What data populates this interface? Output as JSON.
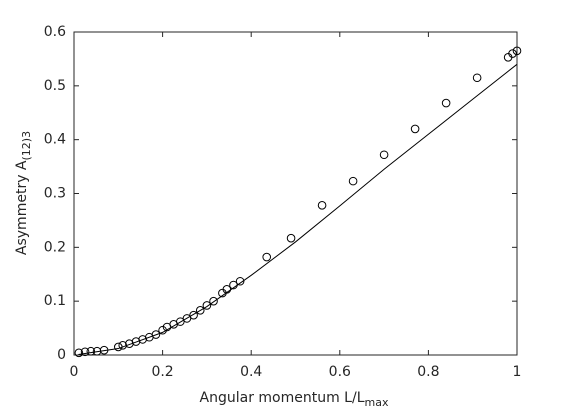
{
  "chart_data": {
    "type": "scatter",
    "xlabel": {
      "text": "Angular momentum L/L",
      "subscript": "max"
    },
    "ylabel": {
      "text": "Asymmetry A",
      "subscript": "(12)3"
    },
    "xlim": [
      0,
      1
    ],
    "xticks": [
      0,
      0.2,
      0.4,
      0.6,
      0.8,
      1
    ],
    "ylim": [
      0,
      0.6
    ],
    "yticks": [
      0,
      0.1,
      0.2,
      0.3,
      0.4,
      0.5,
      0.6
    ],
    "series": [
      {
        "style": "markers",
        "color": "#000000",
        "x": [
          0.011,
          0.025,
          0.038,
          0.052,
          0.068,
          0.1,
          0.11,
          0.125,
          0.14,
          0.155,
          0.17,
          0.185,
          0.2,
          0.21,
          0.225,
          0.24,
          0.255,
          0.27,
          0.285,
          0.3,
          0.315,
          0.335,
          0.345,
          0.36,
          0.375,
          0.435,
          0.49,
          0.56,
          0.63,
          0.7,
          0.77,
          0.84,
          0.91,
          0.98,
          0.99,
          1.0
        ],
        "values": [
          0.004,
          0.006,
          0.007,
          0.007,
          0.009,
          0.015,
          0.018,
          0.021,
          0.025,
          0.029,
          0.033,
          0.038,
          0.046,
          0.052,
          0.057,
          0.062,
          0.068,
          0.074,
          0.083,
          0.092,
          0.1,
          0.115,
          0.122,
          0.13,
          0.137,
          0.182,
          0.217,
          0.278,
          0.323,
          0.372,
          0.42,
          0.468,
          0.515,
          0.553,
          0.56,
          0.565
        ]
      },
      {
        "style": "line",
        "color": "#000000",
        "x": [
          0.01,
          0.1,
          0.2,
          0.3,
          0.4,
          0.5,
          0.6,
          0.7,
          0.8,
          0.9,
          1.0
        ],
        "values": [
          0.001,
          0.012,
          0.042,
          0.09,
          0.148,
          0.21,
          0.277,
          0.345,
          0.41,
          0.475,
          0.54
        ]
      }
    ]
  }
}
